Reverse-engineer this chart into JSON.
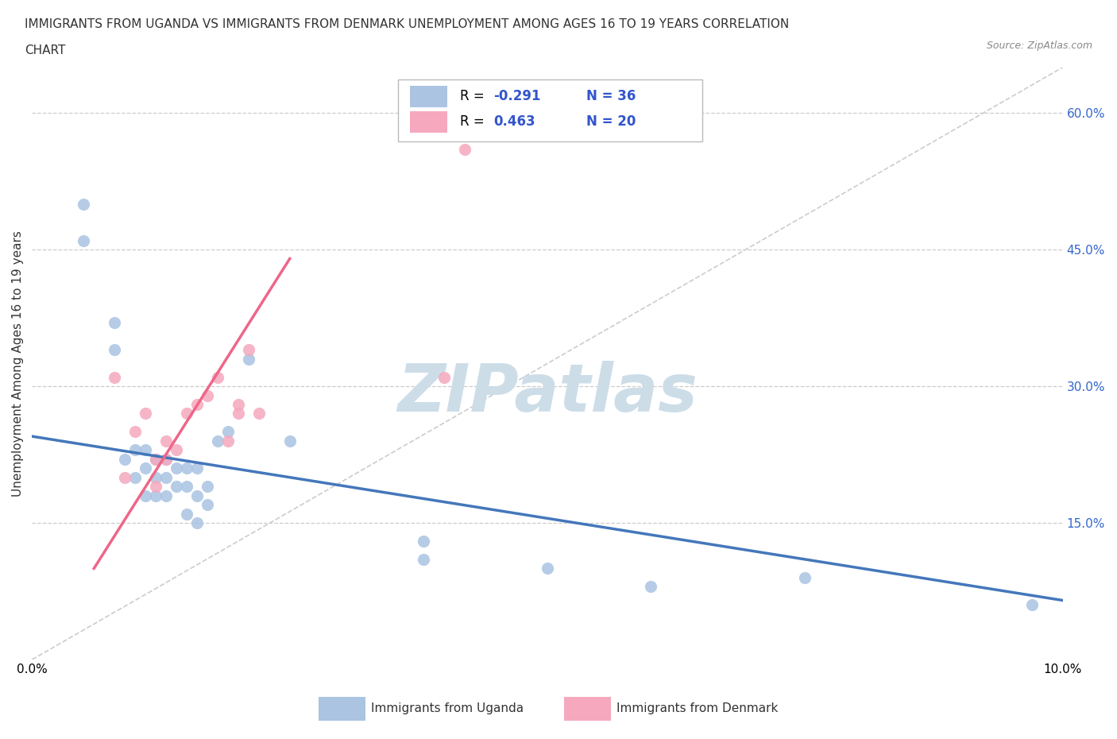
{
  "title_line1": "IMMIGRANTS FROM UGANDA VS IMMIGRANTS FROM DENMARK UNEMPLOYMENT AMONG AGES 16 TO 19 YEARS CORRELATION",
  "title_line2": "CHART",
  "source_text": "Source: ZipAtlas.com",
  "ylabel": "Unemployment Among Ages 16 to 19 years",
  "xlim": [
    0.0,
    0.1
  ],
  "ylim": [
    0.0,
    0.65
  ],
  "xticks": [
    0.0,
    0.02,
    0.04,
    0.06,
    0.08,
    0.1
  ],
  "xticklabels": [
    "0.0%",
    "",
    "",
    "",
    "",
    "10.0%"
  ],
  "ytick_positions": [
    0.15,
    0.3,
    0.45,
    0.6
  ],
  "ytick_labels": [
    "15.0%",
    "30.0%",
    "45.0%",
    "60.0%"
  ],
  "uganda_color": "#aac4e2",
  "denmark_color": "#f5a8be",
  "uganda_line_color": "#4477bb",
  "denmark_line_color": "#ee6688",
  "diagonal_line_color": "#cccccc",
  "r_uganda": -0.291,
  "n_uganda": 36,
  "r_denmark": 0.463,
  "n_denmark": 20,
  "legend_r_color": "#3355cc",
  "background_color": "#ffffff",
  "uganda_x": [
    0.005,
    0.005,
    0.008,
    0.008,
    0.009,
    0.01,
    0.01,
    0.011,
    0.011,
    0.011,
    0.012,
    0.012,
    0.012,
    0.013,
    0.013,
    0.013,
    0.014,
    0.014,
    0.015,
    0.015,
    0.015,
    0.016,
    0.016,
    0.016,
    0.017,
    0.017,
    0.018,
    0.019,
    0.021,
    0.025,
    0.038,
    0.038,
    0.05,
    0.06,
    0.075,
    0.097
  ],
  "uganda_y": [
    0.5,
    0.46,
    0.37,
    0.34,
    0.22,
    0.23,
    0.2,
    0.23,
    0.21,
    0.18,
    0.22,
    0.2,
    0.18,
    0.22,
    0.2,
    0.18,
    0.21,
    0.19,
    0.21,
    0.19,
    0.16,
    0.21,
    0.18,
    0.15,
    0.19,
    0.17,
    0.24,
    0.25,
    0.33,
    0.24,
    0.13,
    0.11,
    0.1,
    0.08,
    0.09,
    0.06
  ],
  "denmark_x": [
    0.008,
    0.009,
    0.01,
    0.011,
    0.012,
    0.012,
    0.013,
    0.013,
    0.014,
    0.015,
    0.016,
    0.017,
    0.018,
    0.019,
    0.02,
    0.02,
    0.021,
    0.022,
    0.04,
    0.042
  ],
  "denmark_y": [
    0.31,
    0.2,
    0.25,
    0.27,
    0.22,
    0.19,
    0.24,
    0.22,
    0.23,
    0.27,
    0.28,
    0.29,
    0.31,
    0.24,
    0.28,
    0.27,
    0.34,
    0.27,
    0.31,
    0.56
  ],
  "watermark_text": "ZIPatlas",
  "watermark_color": "#ccdde8",
  "watermark_fontsize": 60
}
